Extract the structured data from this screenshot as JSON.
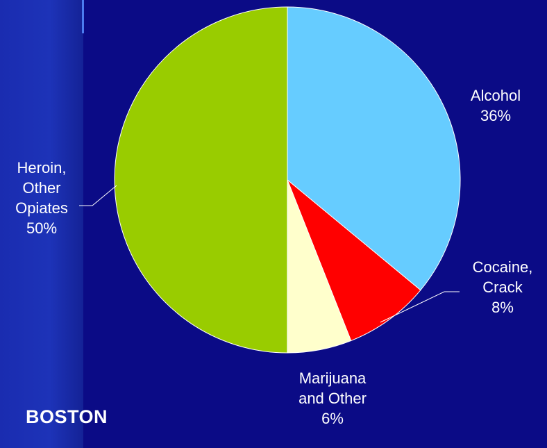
{
  "chart_data": {
    "type": "pie",
    "title": "BOSTON",
    "slices": [
      {
        "label": "Alcohol",
        "value": 36,
        "color": "#66ccff"
      },
      {
        "label": "Cocaine, Crack",
        "value": 8,
        "color": "#ff0000"
      },
      {
        "label": "Marijuana and Other",
        "value": 6,
        "color": "#ffffcc"
      },
      {
        "label": "Heroin, Other Opiates",
        "value": 50,
        "color": "#99cc00"
      }
    ],
    "labels": {
      "alcohol": "Alcohol\n36%",
      "cocaine": "Cocaine,\nCrack\n8%",
      "marijuana": "Marijuana\nand Other\n6%",
      "heroin": "Heroin,\nOther\nOpiates\n50%"
    }
  }
}
